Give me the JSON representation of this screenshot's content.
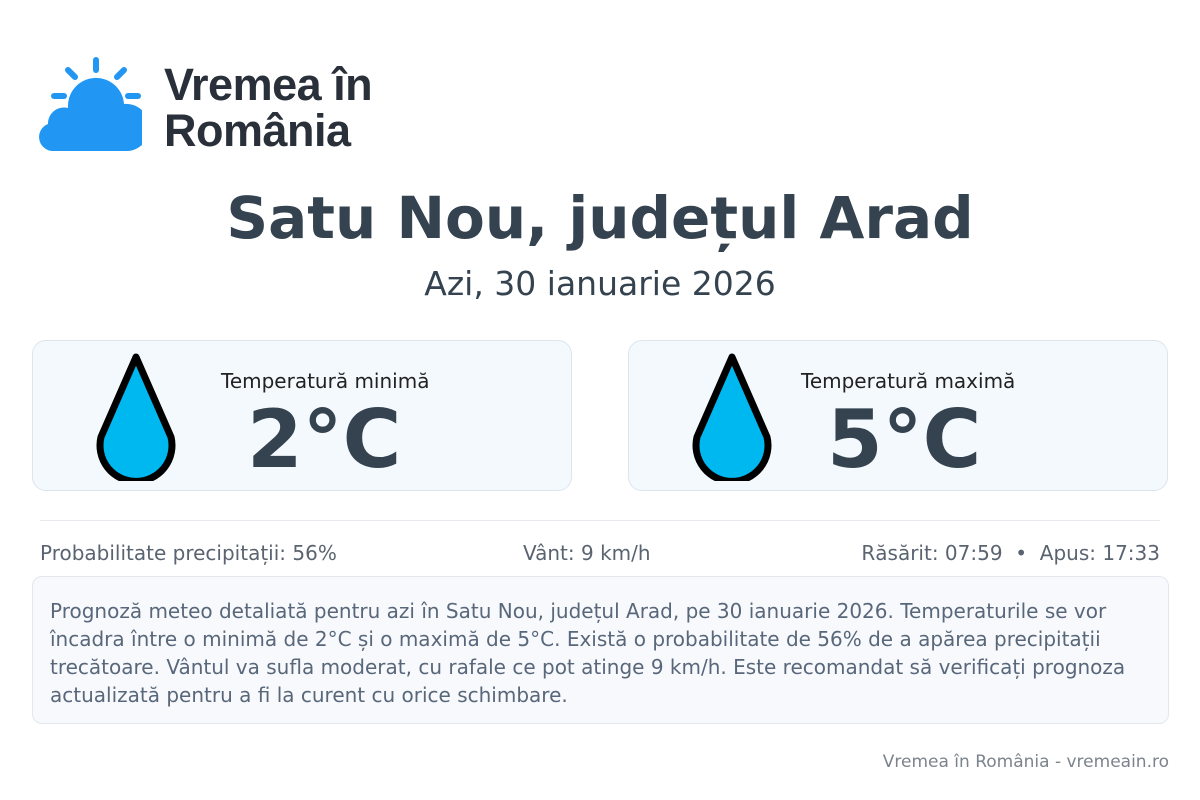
{
  "brand": {
    "line1": "Vremea în",
    "line2": "România",
    "color": "#2196f3"
  },
  "header": {
    "title": "Satu Nou, județul Arad",
    "date": "Azi, 30 ianuarie 2026"
  },
  "cards": [
    {
      "label": "Temperatură minimă",
      "value": "2°C",
      "icon": "water-drop-icon"
    },
    {
      "label": "Temperatură maximă",
      "value": "5°C",
      "icon": "water-drop-icon"
    }
  ],
  "stats": {
    "precip": "Probabilitate precipitații: 56%",
    "wind": "Vânt: 9 km/h",
    "sun": "Răsărit: 07:59  •  Apus: 17:33"
  },
  "description": "Prognoză meteo detaliată pentru azi în Satu Nou, județul Arad, pe 30 ianuarie 2026. Temperaturile se vor încadra între o minimă de 2°C și o maximă de 5°C. Există o probabilitate de 56% de a apărea precipitații trecătoare. Vântul va sufla moderat, cu rafale ce pot atinge 9 km/h. Este recomandat să verificați prognoza actualizată pentru a fi la curent cu orice schimbare.",
  "footer": "Vremea în România - vremeain.ro",
  "colors": {
    "drop": "#00b8f0",
    "text": "#34434f"
  }
}
